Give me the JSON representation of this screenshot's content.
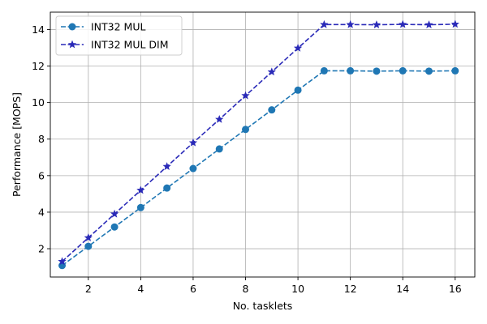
{
  "chart_data": {
    "type": "line",
    "title": "",
    "xlabel": "No. tasklets",
    "ylabel": "Performance [MOPS]",
    "xlim": [
      0.55,
      16.75
    ],
    "ylim": [
      0.45,
      14.95
    ],
    "xticks": [
      2,
      4,
      6,
      8,
      10,
      12,
      14,
      16
    ],
    "yticks": [
      2,
      4,
      6,
      8,
      10,
      12,
      14
    ],
    "grid": true,
    "legend_position": "top-left",
    "x": [
      1,
      2,
      3,
      4,
      5,
      6,
      7,
      8,
      9,
      10,
      11,
      12,
      13,
      14,
      15,
      16
    ],
    "series": [
      {
        "name": "INT32 MUL",
        "color": "#1f77b4",
        "marker": "circle",
        "line_style": "dashed",
        "values": [
          1.08,
          2.13,
          3.19,
          4.25,
          5.32,
          6.39,
          7.46,
          8.53,
          9.6,
          10.68,
          11.74,
          11.74,
          11.72,
          11.74,
          11.72,
          11.74
        ]
      },
      {
        "name": "INT32 MUL DIM",
        "color": "#2a2ab8",
        "marker": "star",
        "line_style": "dashed",
        "values": [
          1.3,
          2.6,
          3.9,
          5.2,
          6.5,
          7.8,
          9.08,
          10.38,
          11.68,
          12.98,
          14.27,
          14.27,
          14.26,
          14.28,
          14.26,
          14.29
        ]
      }
    ]
  }
}
